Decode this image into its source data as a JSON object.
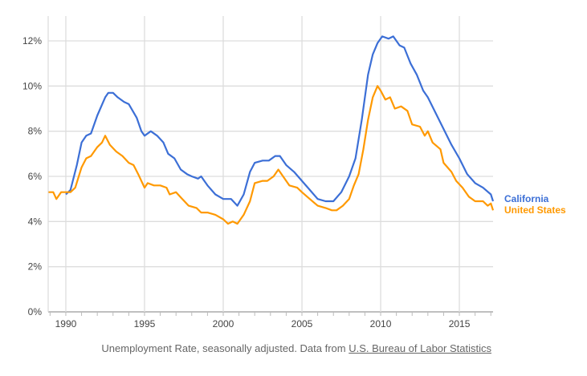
{
  "chart_data": {
    "type": "line",
    "title": "",
    "xlabel": "",
    "ylabel": "",
    "xlim": [
      1988.88,
      2017.14
    ],
    "ylim": [
      0,
      12
    ],
    "grid": true,
    "legend_position": "right",
    "x_ticks": [
      1990,
      1995,
      2000,
      2005,
      2010,
      2015
    ],
    "x_tick_labels": [
      "1990",
      "1995",
      "2000",
      "2005",
      "2010",
      "2015"
    ],
    "y_ticks": [
      0,
      2,
      4,
      6,
      8,
      10,
      12
    ],
    "y_tick_labels": [
      "0%",
      "2%",
      "4%",
      "6%",
      "8%",
      "10%",
      "12%"
    ],
    "series": [
      {
        "name": "California",
        "color": "#3c6fd6",
        "points": [
          [
            1990.0,
            5.2
          ],
          [
            1990.3,
            5.4
          ],
          [
            1990.7,
            6.5
          ],
          [
            1991.0,
            7.5
          ],
          [
            1991.3,
            7.8
          ],
          [
            1991.6,
            7.9
          ],
          [
            1992.0,
            8.7
          ],
          [
            1992.5,
            9.5
          ],
          [
            1992.7,
            9.7
          ],
          [
            1993.0,
            9.7
          ],
          [
            1993.3,
            9.5
          ],
          [
            1993.7,
            9.3
          ],
          [
            1994.0,
            9.2
          ],
          [
            1994.5,
            8.6
          ],
          [
            1994.8,
            8.0
          ],
          [
            1995.0,
            7.8
          ],
          [
            1995.4,
            8.0
          ],
          [
            1995.8,
            7.8
          ],
          [
            1996.2,
            7.5
          ],
          [
            1996.5,
            7.0
          ],
          [
            1996.9,
            6.8
          ],
          [
            1997.3,
            6.3
          ],
          [
            1997.7,
            6.1
          ],
          [
            1998.0,
            6.0
          ],
          [
            1998.4,
            5.9
          ],
          [
            1998.6,
            6.0
          ],
          [
            1999.0,
            5.6
          ],
          [
            1999.5,
            5.2
          ],
          [
            2000.0,
            5.0
          ],
          [
            2000.5,
            5.0
          ],
          [
            2000.9,
            4.7
          ],
          [
            2001.3,
            5.2
          ],
          [
            2001.7,
            6.2
          ],
          [
            2002.0,
            6.6
          ],
          [
            2002.5,
            6.7
          ],
          [
            2002.9,
            6.7
          ],
          [
            2003.3,
            6.9
          ],
          [
            2003.6,
            6.9
          ],
          [
            2004.0,
            6.5
          ],
          [
            2004.5,
            6.2
          ],
          [
            2005.0,
            5.8
          ],
          [
            2005.5,
            5.4
          ],
          [
            2006.0,
            5.0
          ],
          [
            2006.5,
            4.9
          ],
          [
            2007.0,
            4.9
          ],
          [
            2007.5,
            5.3
          ],
          [
            2008.0,
            6.0
          ],
          [
            2008.4,
            6.8
          ],
          [
            2008.8,
            8.5
          ],
          [
            2009.2,
            10.5
          ],
          [
            2009.5,
            11.4
          ],
          [
            2009.8,
            11.9
          ],
          [
            2010.1,
            12.2
          ],
          [
            2010.5,
            12.1
          ],
          [
            2010.8,
            12.2
          ],
          [
            2011.2,
            11.8
          ],
          [
            2011.5,
            11.7
          ],
          [
            2011.9,
            11.0
          ],
          [
            2012.3,
            10.5
          ],
          [
            2012.7,
            9.8
          ],
          [
            2013.0,
            9.5
          ],
          [
            2013.5,
            8.8
          ],
          [
            2014.0,
            8.1
          ],
          [
            2014.5,
            7.4
          ],
          [
            2015.0,
            6.8
          ],
          [
            2015.5,
            6.1
          ],
          [
            2016.0,
            5.7
          ],
          [
            2016.5,
            5.5
          ],
          [
            2017.0,
            5.2
          ],
          [
            2017.14,
            4.9
          ]
        ]
      },
      {
        "name": "United States",
        "color": "#ff9900",
        "points": [
          [
            1988.9,
            5.3
          ],
          [
            1989.2,
            5.3
          ],
          [
            1989.4,
            5.0
          ],
          [
            1989.7,
            5.3
          ],
          [
            1990.0,
            5.3
          ],
          [
            1990.3,
            5.3
          ],
          [
            1990.6,
            5.5
          ],
          [
            1991.0,
            6.4
          ],
          [
            1991.3,
            6.8
          ],
          [
            1991.6,
            6.9
          ],
          [
            1992.0,
            7.3
          ],
          [
            1992.3,
            7.5
          ],
          [
            1992.5,
            7.8
          ],
          [
            1992.8,
            7.4
          ],
          [
            1993.2,
            7.1
          ],
          [
            1993.6,
            6.9
          ],
          [
            1994.0,
            6.6
          ],
          [
            1994.3,
            6.5
          ],
          [
            1994.6,
            6.1
          ],
          [
            1995.0,
            5.5
          ],
          [
            1995.2,
            5.7
          ],
          [
            1995.6,
            5.6
          ],
          [
            1996.0,
            5.6
          ],
          [
            1996.4,
            5.5
          ],
          [
            1996.6,
            5.2
          ],
          [
            1997.0,
            5.3
          ],
          [
            1997.4,
            5.0
          ],
          [
            1997.8,
            4.7
          ],
          [
            1998.3,
            4.6
          ],
          [
            1998.6,
            4.4
          ],
          [
            1999.0,
            4.4
          ],
          [
            1999.5,
            4.3
          ],
          [
            2000.0,
            4.1
          ],
          [
            2000.3,
            3.9
          ],
          [
            2000.6,
            4.0
          ],
          [
            2000.9,
            3.9
          ],
          [
            2001.3,
            4.3
          ],
          [
            2001.7,
            4.9
          ],
          [
            2002.0,
            5.7
          ],
          [
            2002.5,
            5.8
          ],
          [
            2002.8,
            5.8
          ],
          [
            2003.2,
            6.0
          ],
          [
            2003.5,
            6.3
          ],
          [
            2003.8,
            6.0
          ],
          [
            2004.2,
            5.6
          ],
          [
            2004.7,
            5.5
          ],
          [
            2005.0,
            5.3
          ],
          [
            2005.5,
            5.0
          ],
          [
            2006.0,
            4.7
          ],
          [
            2006.5,
            4.6
          ],
          [
            2006.9,
            4.5
          ],
          [
            2007.2,
            4.5
          ],
          [
            2007.6,
            4.7
          ],
          [
            2008.0,
            5.0
          ],
          [
            2008.3,
            5.6
          ],
          [
            2008.6,
            6.1
          ],
          [
            2008.9,
            7.2
          ],
          [
            2009.2,
            8.5
          ],
          [
            2009.5,
            9.5
          ],
          [
            2009.8,
            10.0
          ],
          [
            2010.0,
            9.8
          ],
          [
            2010.3,
            9.4
          ],
          [
            2010.6,
            9.5
          ],
          [
            2010.9,
            9.0
          ],
          [
            2011.3,
            9.1
          ],
          [
            2011.7,
            8.9
          ],
          [
            2012.0,
            8.3
          ],
          [
            2012.5,
            8.2
          ],
          [
            2012.8,
            7.8
          ],
          [
            2013.0,
            8.0
          ],
          [
            2013.3,
            7.5
          ],
          [
            2013.8,
            7.2
          ],
          [
            2014.0,
            6.6
          ],
          [
            2014.5,
            6.2
          ],
          [
            2014.8,
            5.8
          ],
          [
            2015.2,
            5.5
          ],
          [
            2015.6,
            5.1
          ],
          [
            2016.0,
            4.9
          ],
          [
            2016.5,
            4.9
          ],
          [
            2016.8,
            4.7
          ],
          [
            2017.0,
            4.8
          ],
          [
            2017.14,
            4.5
          ]
        ]
      }
    ]
  },
  "caption": {
    "text": "Unemployment Rate, seasonally adjusted. Data from ",
    "link": "U.S. Bureau of Labor Statistics"
  }
}
